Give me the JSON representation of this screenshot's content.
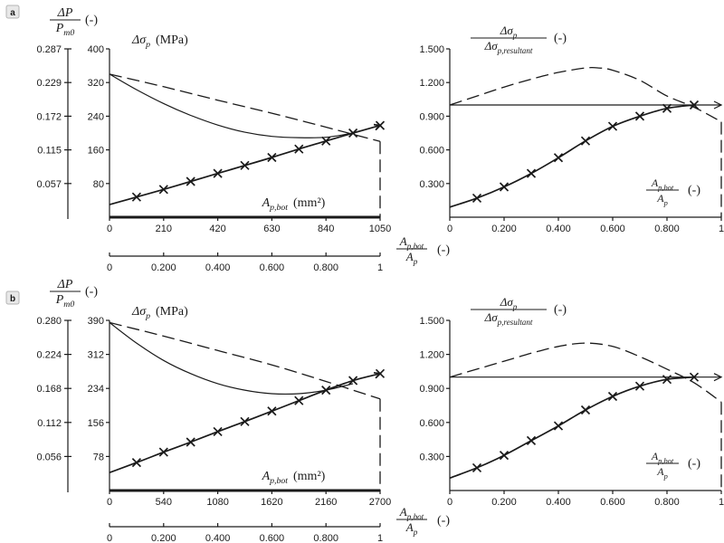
{
  "chart_data": [
    {
      "type": "line",
      "panel": "a",
      "left_axis": {
        "label_num": "ΔP",
        "label_den": "Pm0",
        "unit": "(-)",
        "ticks": [
          "0.057",
          "0.115",
          "0.172",
          "0.229",
          "0.287"
        ]
      },
      "y_label": "Δσp (MPa)",
      "y_ticks": [
        "80",
        "160",
        "240",
        "320",
        "400"
      ],
      "ylim": [
        0,
        400
      ],
      "x_label": "Ap,bot (mm²)",
      "x_ticks": [
        "0",
        "210",
        "420",
        "630",
        "840",
        "1050"
      ],
      "xlim": [
        0,
        1050
      ],
      "x2_label_num": "Ap,bot",
      "x2_label_den": "Ap",
      "x2_unit": "(-)",
      "x2_ticks": [
        "0",
        "0.200",
        "0.400",
        "0.600",
        "0.800",
        "1"
      ],
      "series": [
        {
          "style": "solid",
          "x": [
            0,
            105,
            210,
            315,
            420,
            525,
            630,
            735,
            840,
            945
          ],
          "y": [
            340,
            303,
            270,
            242,
            219,
            202,
            192,
            189,
            190,
            200
          ]
        },
        {
          "style": "dashed",
          "x": [
            0,
            210,
            420,
            630,
            840,
            1050
          ],
          "y": [
            340,
            310,
            278,
            247,
            214,
            180
          ]
        },
        {
          "style": "crosses",
          "x": [
            0,
            105,
            210,
            315,
            420,
            525,
            630,
            735,
            840,
            945,
            1050
          ],
          "y": [
            30,
            48,
            66,
            85,
            104,
            123,
            142,
            162,
            181,
            200,
            218
          ]
        },
        {
          "style": "thick",
          "x": [
            0,
            1050
          ],
          "y": [
            0,
            0
          ]
        }
      ],
      "right": {
        "y_label_num": "Δσp",
        "y_label_den": "Δσp,resultant",
        "y_unit": "(-)",
        "y_ticks": [
          "0.300",
          "0.600",
          "0.900",
          "1.200",
          "1.500"
        ],
        "ylim": [
          0,
          1.5
        ],
        "x_label_num": "Ap,bot",
        "x_label_den": "Ap",
        "x_unit": "(-)",
        "x_ticks": [
          "0",
          "0.200",
          "0.400",
          "0.600",
          "0.800",
          "1"
        ],
        "xlim": [
          0,
          1
        ],
        "series": [
          {
            "style": "solid",
            "x": [
              0,
              1
            ],
            "y": [
              1.0,
              1.0
            ]
          },
          {
            "style": "dashed",
            "x": [
              0,
              0.1,
              0.2,
              0.3,
              0.4,
              0.5,
              0.55,
              0.6,
              0.7,
              0.8,
              0.9,
              1.0
            ],
            "y": [
              1.0,
              1.08,
              1.16,
              1.23,
              1.29,
              1.33,
              1.33,
              1.31,
              1.22,
              1.08,
              0.98,
              0.85
            ]
          },
          {
            "style": "crosses",
            "x": [
              0,
              0.1,
              0.2,
              0.3,
              0.4,
              0.5,
              0.6,
              0.7,
              0.8,
              0.9
            ],
            "y": [
              0.09,
              0.17,
              0.27,
              0.39,
              0.53,
              0.68,
              0.81,
              0.9,
              0.97,
              1.0
            ]
          }
        ]
      }
    },
    {
      "type": "line",
      "panel": "b",
      "left_axis": {
        "label_num": "ΔP",
        "label_den": "Pm0",
        "unit": "(-)",
        "ticks": [
          "0.056",
          "0.112",
          "0.168",
          "0.224",
          "0.280"
        ]
      },
      "y_label": "Δσp (MPa)",
      "y_ticks": [
        "78",
        "156",
        "234",
        "312",
        "390"
      ],
      "ylim": [
        0,
        390
      ],
      "x_label": "Ap,bot (mm²)",
      "x_ticks": [
        "0",
        "540",
        "1080",
        "1620",
        "2160",
        "2700"
      ],
      "xlim": [
        0,
        2700
      ],
      "x2_label_num": "Ap,bot",
      "x2_label_den": "Ap",
      "x2_unit": "(-)",
      "x2_ticks": [
        "0",
        "0.200",
        "0.400",
        "0.600",
        "0.800",
        "1"
      ],
      "series": [
        {
          "style": "solid",
          "x": [
            0,
            270,
            540,
            810,
            1080,
            1350,
            1620,
            1890,
            2160,
            2430
          ],
          "y": [
            385,
            338,
            298,
            268,
            245,
            230,
            222,
            222,
            230,
            245
          ]
        },
        {
          "style": "dashed",
          "x": [
            0,
            540,
            1080,
            1620,
            2160,
            2700
          ],
          "y": [
            385,
            354,
            321,
            288,
            250,
            210
          ]
        },
        {
          "style": "crosses",
          "x": [
            0,
            270,
            540,
            810,
            1080,
            1350,
            1620,
            1890,
            2160,
            2430,
            2700
          ],
          "y": [
            41,
            64,
            88,
            111,
            135,
            158,
            182,
            206,
            230,
            252,
            268
          ]
        },
        {
          "style": "thick",
          "x": [
            0,
            2700
          ],
          "y": [
            0,
            0
          ]
        }
      ],
      "right": {
        "y_label_num": "Δσp",
        "y_label_den": "Δσp,resultant",
        "y_unit": "(-)",
        "y_ticks": [
          "0.300",
          "0.600",
          "0.900",
          "1.200",
          "1.500"
        ],
        "ylim": [
          0,
          1.5
        ],
        "x_label_num": "Ap,bot",
        "x_label_den": "Ap",
        "x_unit": "(-)",
        "x_ticks": [
          "0",
          "0.200",
          "0.400",
          "0.600",
          "0.800",
          "1"
        ],
        "xlim": [
          0,
          1
        ],
        "series": [
          {
            "style": "solid",
            "x": [
              0,
              1
            ],
            "y": [
              1.0,
              1.0
            ]
          },
          {
            "style": "dashed",
            "x": [
              0,
              0.1,
              0.2,
              0.3,
              0.4,
              0.5,
              0.6,
              0.7,
              0.8,
              0.9,
              1.0
            ],
            "y": [
              1.0,
              1.07,
              1.14,
              1.21,
              1.27,
              1.3,
              1.27,
              1.18,
              1.07,
              0.95,
              0.78
            ]
          },
          {
            "style": "crosses",
            "x": [
              0,
              0.1,
              0.2,
              0.3,
              0.4,
              0.5,
              0.6,
              0.7,
              0.8,
              0.9
            ],
            "y": [
              0.11,
              0.2,
              0.31,
              0.44,
              0.57,
              0.71,
              0.83,
              0.92,
              0.98,
              1.0
            ]
          }
        ]
      }
    }
  ],
  "panel_labels": [
    "a",
    "b"
  ]
}
